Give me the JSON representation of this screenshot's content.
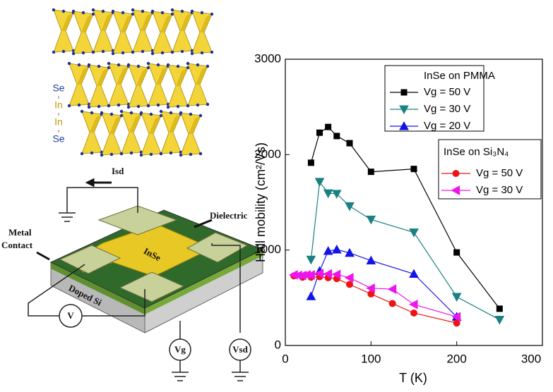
{
  "chart_data": {
    "type": "line",
    "xlabel": "T (K)",
    "ylabel": "Hall mobility (cm²/Vs)",
    "xlim": [
      0,
      300
    ],
    "ylim": [
      0,
      3000
    ],
    "xticks": [
      0,
      100,
      200,
      300
    ],
    "yticks": [
      0,
      1000,
      2000,
      3000
    ],
    "groups": [
      {
        "title": "InSe on PMMA",
        "series": [
          {
            "name": "Vg = 50 V",
            "color": "#000000",
            "marker": "square",
            "x": [
              30,
              40,
              50,
              60,
              75,
              100,
              150,
              200,
              250
            ],
            "values": [
              1915,
              2230,
              2290,
              2195,
              2120,
              1820,
              1850,
              975,
              385
            ]
          },
          {
            "name": "Vg = 30 V",
            "color": "#1a8080",
            "marker": "triangle-down",
            "x": [
              30,
              40,
              50,
              60,
              75,
              100,
              150,
              200,
              250
            ],
            "values": [
              900,
              1715,
              1595,
              1590,
              1460,
              1320,
              1185,
              510,
              270
            ]
          },
          {
            "name": "Vg = 20 V",
            "color": "#1414e6",
            "marker": "triangle-up",
            "x": [
              30,
              40,
              50,
              60,
              75,
              100,
              150,
              200
            ],
            "values": [
              515,
              780,
              990,
              1005,
              970,
              890,
              750,
              300
            ]
          }
        ]
      },
      {
        "title": "InSe on Si₃N₄",
        "series": [
          {
            "name": "Vg = 50 V",
            "color": "#ee1414",
            "marker": "circle",
            "x": [
              10,
              20,
              30,
              40,
              50,
              60,
              75,
              100,
              125,
              150,
              200
            ],
            "values": [
              730,
              715,
              715,
              720,
              710,
              700,
              640,
              540,
              440,
              340,
              235
            ]
          },
          {
            "name": "Vg = 30 V",
            "color": "#ee14ee",
            "marker": "triangle-left",
            "x": [
              10,
              15,
              20,
              25,
              30,
              40,
              50,
              60,
              75,
              100,
              125,
              150,
              200
            ],
            "values": [
              740,
              735,
              735,
              740,
              740,
              755,
              750,
              745,
              710,
              600,
              590,
              430,
              300
            ]
          }
        ]
      }
    ]
  },
  "schematic": {
    "crystal_labels": [
      "Se",
      "In",
      "In",
      "Se"
    ],
    "device_labels": {
      "isd": "Isd",
      "dielectric": "Dielectric",
      "metal_contact": [
        "Metal",
        "Contact"
      ],
      "channel": "InSe",
      "substrate": "Doped Si",
      "voltmeter": "V",
      "gate": "Vg",
      "source_drain": "Vsd"
    }
  }
}
